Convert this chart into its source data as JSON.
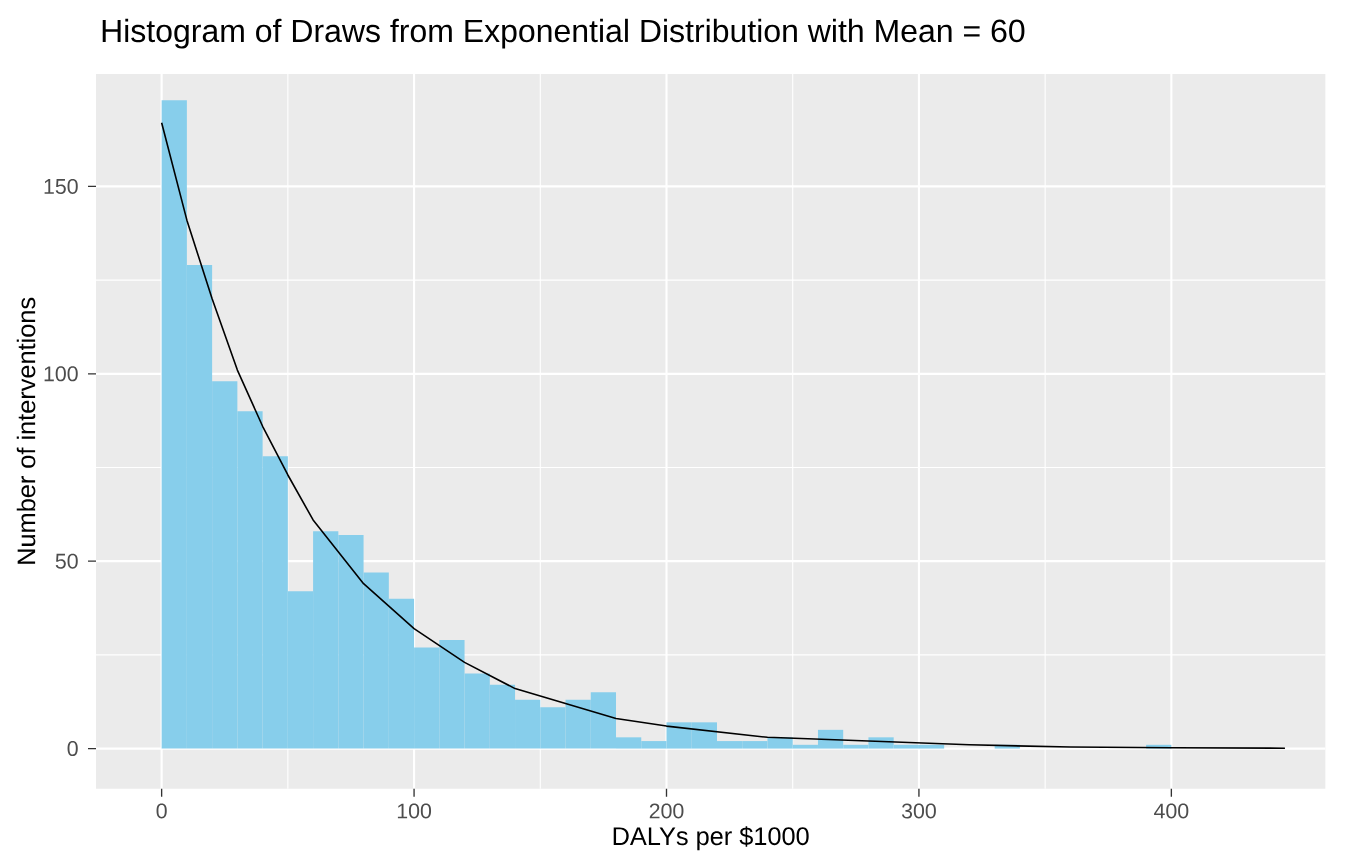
{
  "chart_data": {
    "type": "histogram",
    "title": "Histogram of Draws from Exponential Distribution with Mean = 60",
    "xlabel": "DALYs per $1000",
    "ylabel": "Number of interventions",
    "bins": [
      0,
      10,
      20,
      30,
      40,
      50,
      60,
      70,
      80,
      90,
      100,
      110,
      120,
      130,
      140,
      150,
      160,
      170,
      180,
      190,
      200,
      210,
      220,
      230,
      240,
      250,
      260,
      270,
      280,
      290,
      300,
      310,
      320,
      330,
      340,
      350,
      360,
      370,
      380,
      390,
      400,
      410,
      420,
      430,
      440
    ],
    "values": [
      173,
      129,
      98,
      90,
      78,
      42,
      58,
      57,
      47,
      40,
      27,
      29,
      20,
      17,
      13,
      11,
      13,
      15,
      3,
      2,
      7,
      7,
      2,
      2,
      3,
      1,
      5,
      1,
      3,
      1,
      1,
      0,
      0,
      1,
      0,
      0,
      0,
      0,
      0,
      1,
      0,
      0,
      0,
      0
    ],
    "color": "#87ceeb",
    "series": [
      {
        "type": "line",
        "color": "#000000",
        "x": [
          0,
          10,
          20,
          30,
          40,
          50,
          60,
          80,
          100,
          120,
          140,
          160,
          180,
          200,
          240,
          280,
          320,
          360,
          400,
          445
        ],
        "values": [
          167,
          141,
          120,
          101,
          86,
          73,
          61,
          44,
          32,
          23,
          16,
          12,
          8,
          6,
          3,
          2,
          1,
          0.4,
          0.2,
          0.1
        ]
      }
    ],
    "xlim": [
      -26,
      461
    ],
    "ylim": [
      -10.7,
      180
    ],
    "xticks": [
      0,
      100,
      200,
      300,
      400
    ],
    "yticks": [
      0,
      50,
      100,
      150
    ],
    "grid": true
  }
}
